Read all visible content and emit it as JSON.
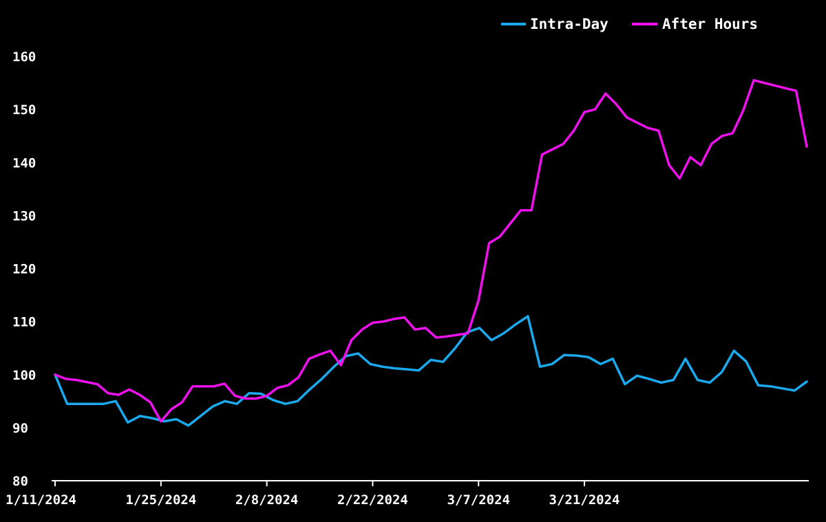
{
  "chart_data": {
    "type": "line",
    "title": "",
    "xlabel": "",
    "ylabel": "",
    "ylim": [
      80,
      160
    ],
    "y_ticks": [
      80,
      90,
      100,
      110,
      120,
      130,
      140,
      150,
      160
    ],
    "x_ticks": [
      "1/11/2024",
      "1/25/2024",
      "2/8/2024",
      "2/22/2024",
      "3/7/2024",
      "3/21/2024"
    ],
    "x_tick_index": [
      0,
      10,
      20,
      30,
      40,
      50
    ],
    "grid": false,
    "legend": "top-right",
    "series": [
      {
        "name": "Intra-Day",
        "color": "#1aa9ec",
        "values": [
          100.0,
          94.5,
          94.5,
          94.5,
          94.5,
          95.0,
          91.0,
          92.2,
          91.8,
          91.2,
          91.6,
          90.4,
          92.2,
          94.0,
          95.0,
          94.5,
          96.5,
          96.4,
          95.2,
          94.5,
          95.0,
          97.2,
          99.2,
          101.5,
          103.5,
          104.0,
          102.0,
          101.5,
          101.2,
          101.0,
          100.8,
          102.8,
          102.4,
          105.0,
          108.0,
          108.8,
          106.5,
          107.8,
          109.5,
          111.0,
          101.5,
          102.0,
          103.7,
          103.6,
          103.3,
          102.0,
          103.0,
          98.2,
          99.8,
          99.2,
          98.5,
          99.0,
          103.0,
          99.0,
          98.5,
          100.5,
          104.5,
          102.5,
          98.0,
          97.8,
          97.4,
          97.0,
          98.7
        ]
      },
      {
        "name": "After Hours",
        "color": "#ee11ee",
        "values": [
          100.0,
          99.2,
          99.0,
          98.6,
          98.2,
          96.5,
          96.2,
          97.2,
          96.2,
          94.8,
          91.2,
          93.5,
          94.8,
          97.8,
          97.8,
          97.8,
          98.3,
          96.0,
          95.5,
          95.5,
          96.0,
          97.5,
          98.0,
          99.5,
          103.0,
          103.8,
          104.5,
          101.8,
          106.5,
          108.5,
          109.8,
          110.0,
          110.5,
          110.8,
          108.5,
          108.8,
          107.0,
          107.2,
          107.5,
          107.8,
          114.0,
          124.8,
          126.0,
          128.5,
          131.0,
          131.0,
          141.5,
          142.5,
          143.5,
          146.0,
          149.5,
          150.0,
          153.0,
          151.0,
          148.5,
          147.5,
          146.5,
          146.0,
          139.5,
          137.0,
          141.0,
          139.5,
          143.5,
          145.0,
          145.5,
          149.8,
          155.5,
          155.0,
          154.5,
          154.0,
          153.5,
          143.0
        ]
      }
    ]
  }
}
